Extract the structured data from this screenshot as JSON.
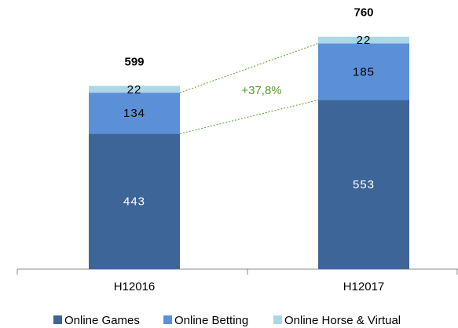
{
  "chart_data": {
    "type": "stacked_bar",
    "categories": [
      "H12016",
      "H12017"
    ],
    "series": [
      {
        "name": "Online Games",
        "color": "#3e6597",
        "values": [
          443,
          553
        ]
      },
      {
        "name": "Online Betting",
        "color": "#5b90d8",
        "values": [
          134,
          185
        ]
      },
      {
        "name": "Online Horse & Virtual",
        "color": "#acd7e6",
        "values": [
          22,
          22
        ]
      }
    ],
    "totals": [
      599,
      760
    ],
    "annotation": "+37,8%",
    "annotation_color": "#5a9a2a",
    "ylim": [
      0,
      880
    ]
  }
}
